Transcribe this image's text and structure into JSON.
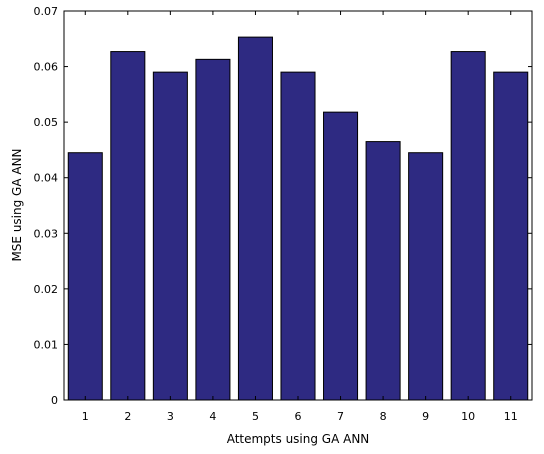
{
  "chart_data": {
    "type": "bar",
    "categories": [
      "1",
      "2",
      "3",
      "4",
      "5",
      "6",
      "7",
      "8",
      "9",
      "10",
      "11"
    ],
    "values": [
      0.0445,
      0.0627,
      0.059,
      0.0613,
      0.0653,
      0.059,
      0.0518,
      0.0465,
      0.0445,
      0.0627,
      0.059
    ],
    "title": "",
    "xlabel": "Attempts using GA ANN",
    "ylabel": "MSE using GA ANN",
    "ylim": [
      0,
      0.07
    ],
    "yticks": [
      "0",
      "0.01",
      "0.02",
      "0.03",
      "0.04",
      "0.05",
      "0.06",
      "0.07"
    ],
    "ytick_values": [
      0,
      0.01,
      0.02,
      0.03,
      0.04,
      0.05,
      0.06,
      0.07
    ],
    "grid": false,
    "bar_color": "#2e2a82",
    "bar_edge_color": "#000000"
  }
}
